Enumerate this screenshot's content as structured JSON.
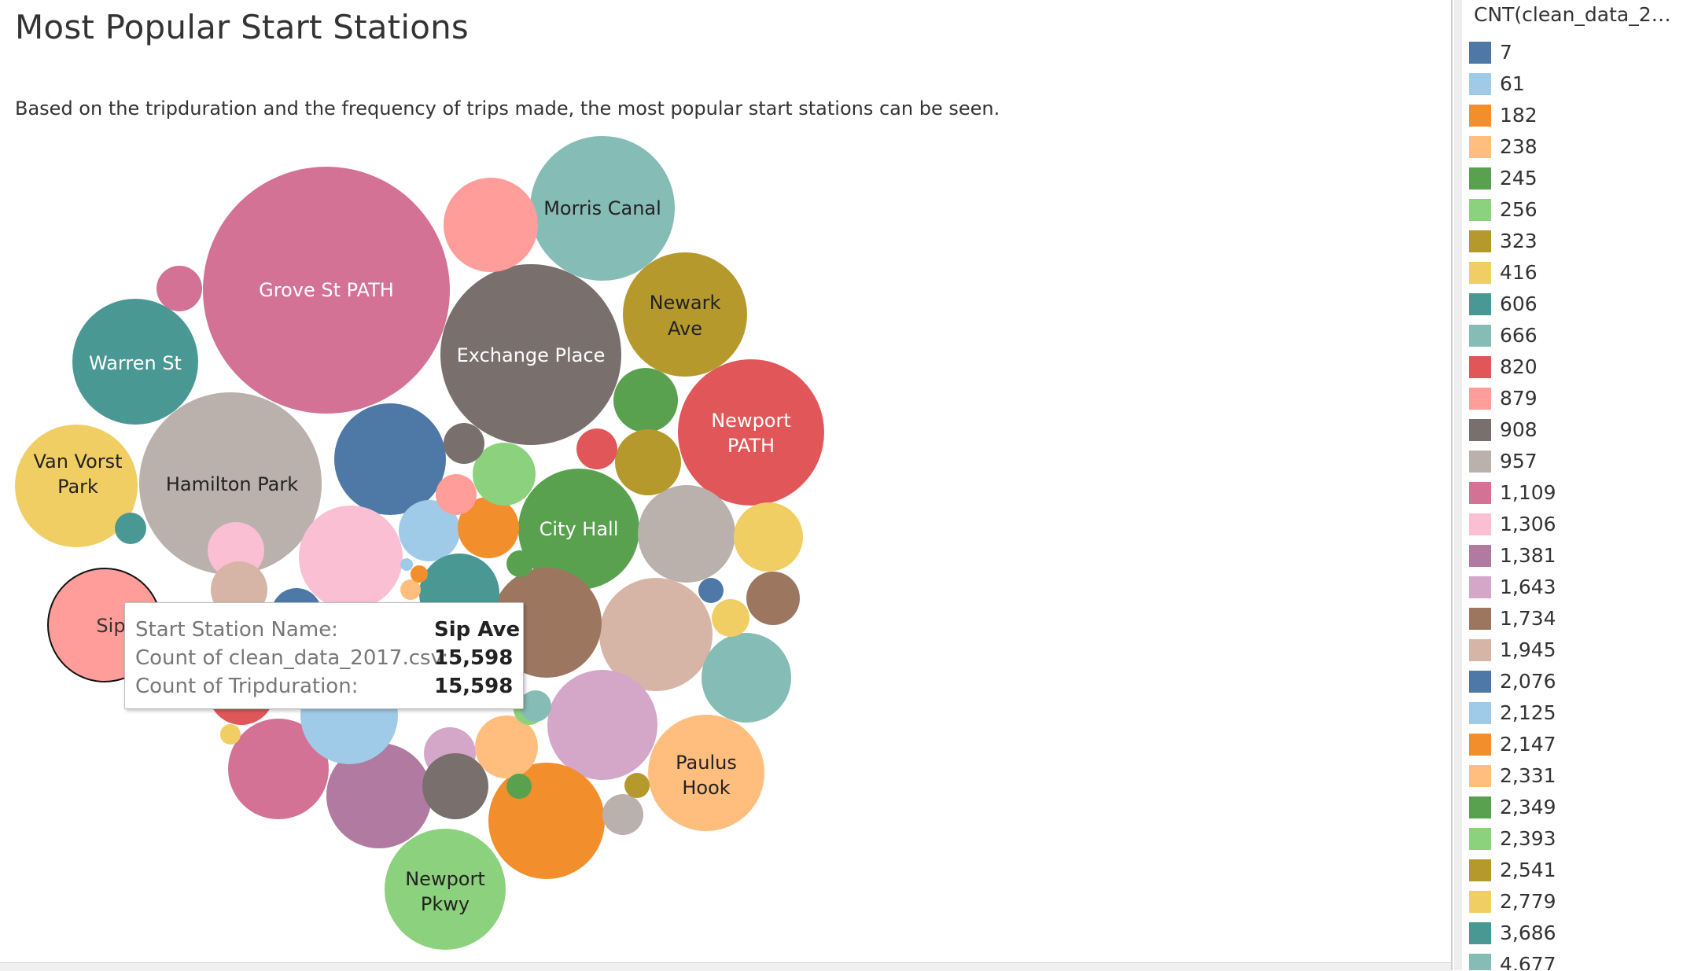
{
  "dashboard": {
    "title": "Most Popular Start Stations",
    "description": "Based on the tripduration and the frequency of trips made, the most popular start stations can be seen."
  },
  "tooltip": {
    "rows": [
      {
        "key": "Start Station Name:",
        "value": "Sip Ave"
      },
      {
        "key": "Count of clean_data_2017.csv:",
        "value": "15,598"
      },
      {
        "key": "Count of Tripduration:",
        "value": "15,598"
      }
    ]
  },
  "legend": {
    "title": "CNT(clean_data_2017...",
    "items": [
      {
        "label": "7",
        "color": "#4e79a7"
      },
      {
        "label": "61",
        "color": "#a0cbe8"
      },
      {
        "label": "182",
        "color": "#f28e2b"
      },
      {
        "label": "238",
        "color": "#ffbe7d"
      },
      {
        "label": "245",
        "color": "#59a14f"
      },
      {
        "label": "256",
        "color": "#8cd17d"
      },
      {
        "label": "323",
        "color": "#b6992d"
      },
      {
        "label": "416",
        "color": "#f1ce63"
      },
      {
        "label": "606",
        "color": "#499894"
      },
      {
        "label": "666",
        "color": "#86bcb6"
      },
      {
        "label": "820",
        "color": "#e15759"
      },
      {
        "label": "879",
        "color": "#ff9d9a"
      },
      {
        "label": "908",
        "color": "#79706e"
      },
      {
        "label": "957",
        "color": "#bab0ac"
      },
      {
        "label": "1,109",
        "color": "#d37295"
      },
      {
        "label": "1,306",
        "color": "#fabfd2"
      },
      {
        "label": "1,381",
        "color": "#b07aa1"
      },
      {
        "label": "1,643",
        "color": "#d4a6c8"
      },
      {
        "label": "1,734",
        "color": "#9d7660"
      },
      {
        "label": "1,945",
        "color": "#d7b5a6"
      },
      {
        "label": "2,076",
        "color": "#4e79a7"
      },
      {
        "label": "2,125",
        "color": "#a0cbe8"
      },
      {
        "label": "2,147",
        "color": "#f28e2b"
      },
      {
        "label": "2,331",
        "color": "#ffbe7d"
      },
      {
        "label": "2,349",
        "color": "#59a14f"
      },
      {
        "label": "2,393",
        "color": "#8cd17d"
      },
      {
        "label": "2,541",
        "color": "#b6992d"
      },
      {
        "label": "2,779",
        "color": "#f1ce63"
      },
      {
        "label": "3,686",
        "color": "#499894"
      },
      {
        "label": "4,677",
        "color": "#86bcb6"
      }
    ]
  },
  "chart_data": {
    "type": "packed-bubble",
    "title": "Most Popular Start Stations",
    "measure": "CNT(clean_data_2017.csv)",
    "highlighted": "Sip Ave",
    "bubbles": [
      {
        "label": "Grove St PATH",
        "color": "#d37295",
        "text_color": "#ffffff"
      },
      {
        "label": "Exchange Place",
        "color": "#79706e",
        "text_color": "#ffffff"
      },
      {
        "label": "Sip",
        "color": "#ff9d9a",
        "text_color": "#333333",
        "value": 15598
      },
      {
        "label": "Hamilton Park",
        "color": "#bab0ac",
        "text_color": "#222222"
      },
      {
        "label": "Newport PATH",
        "color": "#e15759",
        "text_color": "#ffffff"
      },
      {
        "label": "Morris Canal",
        "color": "#86bcb6",
        "text_color": "#222222"
      },
      {
        "label": "Warren St",
        "color": "#499894",
        "text_color": "#ffffff"
      },
      {
        "label": "City Hall",
        "color": "#59a14f",
        "text_color": "#ffffff"
      },
      {
        "label": "Paulus Hook",
        "color": "#ffbe7d",
        "text_color": "#222222"
      },
      {
        "label": "Newport Pkwy",
        "color": "#8cd17d",
        "text_color": "#222222"
      },
      {
        "label": "Newark Ave",
        "color": "#b6992d",
        "text_color": "#222222"
      },
      {
        "label": "Van Vorst Park",
        "color": "#f1ce63",
        "text_color": "#222222"
      },
      {
        "color": "#d7b5a6"
      },
      {
        "color": "#d4a6c8"
      },
      {
        "color": "#9d7660"
      },
      {
        "color": "#f28e2b"
      },
      {
        "color": "#86bcb6"
      },
      {
        "color": "#b07aa1"
      },
      {
        "color": "#bab0ac"
      },
      {
        "color": "#4e79a7"
      },
      {
        "color": "#fabfd2"
      },
      {
        "color": "#ff9d9a"
      },
      {
        "color": "#d37295"
      },
      {
        "color": "#59a14f"
      },
      {
        "color": "#b6992d"
      },
      {
        "color": "#a0cbe8"
      },
      {
        "color": "#f28e2b"
      },
      {
        "color": "#8cd17d"
      },
      {
        "color": "#f1ce63"
      },
      {
        "color": "#9d7660"
      },
      {
        "color": "#499894"
      },
      {
        "color": "#a0cbe8"
      },
      {
        "color": "#fabfd2"
      },
      {
        "color": "#d4a6c8"
      },
      {
        "color": "#ffbe7d"
      },
      {
        "color": "#d37295"
      },
      {
        "color": "#79706e"
      },
      {
        "color": "#e15759"
      },
      {
        "color": "#d7b5a6"
      },
      {
        "color": "#4e79a7"
      },
      {
        "color": "#ff9d9a"
      },
      {
        "color": "#bab0ac"
      },
      {
        "color": "#79706e"
      },
      {
        "color": "#e15759"
      },
      {
        "color": "#f1ce63"
      },
      {
        "color": "#499894"
      },
      {
        "color": "#b6992d"
      },
      {
        "color": "#8cd17d"
      },
      {
        "color": "#86bcb6"
      },
      {
        "color": "#59a14f"
      },
      {
        "color": "#ffbe7d"
      },
      {
        "color": "#f28e2b"
      },
      {
        "color": "#a0cbe8"
      },
      {
        "color": "#4e79a7"
      },
      {
        "color": "#f1ce63"
      },
      {
        "color": "#59a14f"
      }
    ]
  }
}
